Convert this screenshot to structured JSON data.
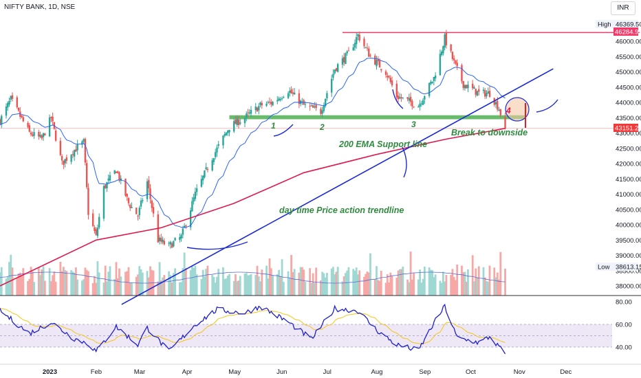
{
  "header": {
    "symbol_line": "NIFTY BANK, 1D, NSE",
    "currency": "INR"
  },
  "colors": {
    "up": "#26a69a",
    "down": "#ef5350",
    "ema_fast": "#2962ff",
    "ema_200": "#e0194a",
    "trendline": "#1a2ad6",
    "support": "#4caf50",
    "resistance": "#f23a6a",
    "annotation": "#2e8b3e",
    "rsi": "#1f1fcc",
    "rsi_ma": "#f5c518",
    "rsi_band": "#ede7f6"
  },
  "price_labels": {
    "high_title": "High",
    "high_value": "46369.50",
    "low_title": "Low",
    "low_value": "38613.15",
    "resistance_value": "46284.95",
    "last_value": "43151.20"
  },
  "annotations": {
    "touch_1": "1",
    "touch_2": "2",
    "touch_3": "3",
    "touch_4": "4",
    "ema_support": "200 EMA Support line",
    "trendline_label": "day time Price action trendline",
    "break_label": "Break to downside"
  },
  "chart_data": [
    {
      "type": "candlestick",
      "title": "NIFTY BANK, 1D, NSE",
      "x_labels": [
        "2023",
        "Feb",
        "Mar",
        "Apr",
        "May",
        "Jun",
        "Jul",
        "Aug",
        "Sep",
        "Oct",
        "Nov",
        "Dec"
      ],
      "ylim": [
        37800,
        46700
      ],
      "y_ticks": [
        38000,
        38500,
        39000,
        39500,
        40000,
        40500,
        41000,
        41500,
        42000,
        42500,
        43000,
        43500,
        44000,
        44500,
        45000,
        45500,
        46000
      ],
      "grid": false,
      "anchors": [
        {
          "date": "2022-12-01",
          "close": 43400
        },
        {
          "date": "2022-12-08",
          "close": 44100
        },
        {
          "date": "2022-12-20",
          "close": 43000
        },
        {
          "date": "2022-12-28",
          "close": 42800
        },
        {
          "date": "2023-01-03",
          "close": 43500
        },
        {
          "date": "2023-01-10",
          "close": 42000
        },
        {
          "date": "2023-01-17",
          "close": 42400
        },
        {
          "date": "2023-01-24",
          "close": 42700
        },
        {
          "date": "2023-01-27",
          "close": 40400
        },
        {
          "date": "2023-02-01",
          "close": 39600
        },
        {
          "date": "2023-02-06",
          "close": 41200
        },
        {
          "date": "2023-02-14",
          "close": 41800
        },
        {
          "date": "2023-02-22",
          "close": 40700
        },
        {
          "date": "2023-02-28",
          "close": 40300
        },
        {
          "date": "2023-03-06",
          "close": 41400
        },
        {
          "date": "2023-03-13",
          "close": 39500
        },
        {
          "date": "2023-03-20",
          "close": 39300
        },
        {
          "date": "2023-03-28",
          "close": 39600
        },
        {
          "date": "2023-04-06",
          "close": 41000
        },
        {
          "date": "2023-04-17",
          "close": 42200
        },
        {
          "date": "2023-04-28",
          "close": 43200
        },
        {
          "date": "2023-05-08",
          "close": 43500
        },
        {
          "date": "2023-05-18",
          "close": 43900
        },
        {
          "date": "2023-05-26",
          "close": 44000
        },
        {
          "date": "2023-06-05",
          "close": 44400
        },
        {
          "date": "2023-06-15",
          "close": 43900
        },
        {
          "date": "2023-06-26",
          "close": 43700
        },
        {
          "date": "2023-07-05",
          "close": 45100
        },
        {
          "date": "2023-07-14",
          "close": 45600
        },
        {
          "date": "2023-07-20",
          "close": 46200
        },
        {
          "date": "2023-07-28",
          "close": 45500
        },
        {
          "date": "2023-08-07",
          "close": 45000
        },
        {
          "date": "2023-08-14",
          "close": 44200
        },
        {
          "date": "2023-08-28",
          "close": 43900
        },
        {
          "date": "2023-09-07",
          "close": 44800
        },
        {
          "date": "2023-09-14",
          "close": 46100
        },
        {
          "date": "2023-09-20",
          "close": 45300
        },
        {
          "date": "2023-09-26",
          "close": 44600
        },
        {
          "date": "2023-10-06",
          "close": 44300
        },
        {
          "date": "2023-10-13",
          "close": 44300
        },
        {
          "date": "2023-10-19",
          "close": 43800
        },
        {
          "date": "2023-10-23",
          "close": 43151.2
        }
      ],
      "ema_200_anchors": [
        {
          "date": "2022-12-01",
          "value": 38000
        },
        {
          "date": "2023-02-01",
          "value": 39500
        },
        {
          "date": "2023-03-15",
          "value": 39900
        },
        {
          "date": "2023-05-01",
          "value": 40700
        },
        {
          "date": "2023-06-15",
          "value": 41700
        },
        {
          "date": "2023-08-01",
          "value": 42300
        },
        {
          "date": "2023-09-15",
          "value": 42800
        },
        {
          "date": "2023-10-23",
          "value": 43150
        }
      ],
      "trendline": [
        {
          "date": "2023-01-01",
          "value": 37800
        },
        {
          "date": "2023-11-23",
          "value": 45100
        }
      ],
      "support_zone": {
        "from": "2023-04-28",
        "to": "2023-11-05",
        "low": 43450,
        "high": 43580
      },
      "resistance": {
        "from": "2023-07-10",
        "to": "2023-12-31",
        "value": 46284.95
      },
      "volume_anchors": [
        {
          "date": "2022-12-01",
          "value": 1.0
        },
        {
          "date": "2023-10-23",
          "value": 0.9
        }
      ]
    },
    {
      "type": "line",
      "title": "",
      "ylim": [
        34,
        82
      ],
      "y_ticks": [
        40,
        60,
        80
      ],
      "band": [
        40,
        60
      ],
      "guide": 50,
      "rsi_anchors": [
        {
          "date": "2022-12-01",
          "value": 72
        },
        {
          "date": "2022-12-20",
          "value": 52
        },
        {
          "date": "2023-01-03",
          "value": 62
        },
        {
          "date": "2023-01-17",
          "value": 48
        },
        {
          "date": "2023-01-27",
          "value": 43
        },
        {
          "date": "2023-02-01",
          "value": 36
        },
        {
          "date": "2023-02-14",
          "value": 58
        },
        {
          "date": "2023-02-28",
          "value": 42
        },
        {
          "date": "2023-03-06",
          "value": 57
        },
        {
          "date": "2023-03-20",
          "value": 36
        },
        {
          "date": "2023-04-06",
          "value": 60
        },
        {
          "date": "2023-04-20",
          "value": 73
        },
        {
          "date": "2023-05-08",
          "value": 70
        },
        {
          "date": "2023-05-18",
          "value": 76
        },
        {
          "date": "2023-06-05",
          "value": 62
        },
        {
          "date": "2023-06-20",
          "value": 47
        },
        {
          "date": "2023-07-05",
          "value": 74
        },
        {
          "date": "2023-07-20",
          "value": 72
        },
        {
          "date": "2023-08-01",
          "value": 55
        },
        {
          "date": "2023-08-14",
          "value": 42
        },
        {
          "date": "2023-08-28",
          "value": 37
        },
        {
          "date": "2023-09-07",
          "value": 61
        },
        {
          "date": "2023-09-14",
          "value": 76
        },
        {
          "date": "2023-09-22",
          "value": 48
        },
        {
          "date": "2023-10-06",
          "value": 44
        },
        {
          "date": "2023-10-13",
          "value": 49
        },
        {
          "date": "2023-10-23",
          "value": 34
        }
      ]
    }
  ]
}
